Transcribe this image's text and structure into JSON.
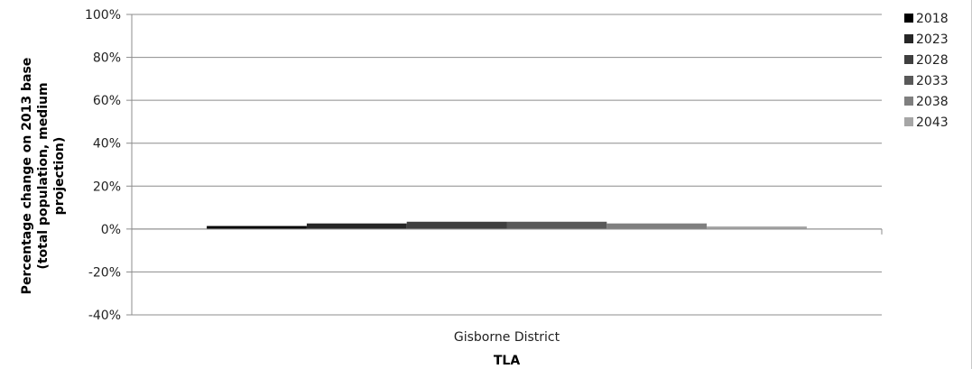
{
  "chart_data": {
    "type": "bar",
    "categories": [
      "Gisborne District"
    ],
    "series": [
      {
        "name": "2018",
        "values": [
          1.4
        ],
        "color": "#000000"
      },
      {
        "name": "2023",
        "values": [
          2.6
        ],
        "color": "#262626"
      },
      {
        "name": "2028",
        "values": [
          3.4
        ],
        "color": "#3f3f3f"
      },
      {
        "name": "2033",
        "values": [
          3.4
        ],
        "color": "#595959"
      },
      {
        "name": "2038",
        "values": [
          2.6
        ],
        "color": "#7f7f7f"
      },
      {
        "name": "2043",
        "values": [
          1.2
        ],
        "color": "#a6a6a6"
      }
    ],
    "ylim": [
      -40,
      100
    ],
    "yticks": [
      "100%",
      "80%",
      "60%",
      "40%",
      "20%",
      "0%",
      "-20%",
      "-40%"
    ],
    "ylabel_lines": [
      "Percentage change on 2013 base",
      "(total population, medium",
      "projection)"
    ],
    "xlabel": "TLA",
    "grid": true,
    "legend_position": "right"
  }
}
